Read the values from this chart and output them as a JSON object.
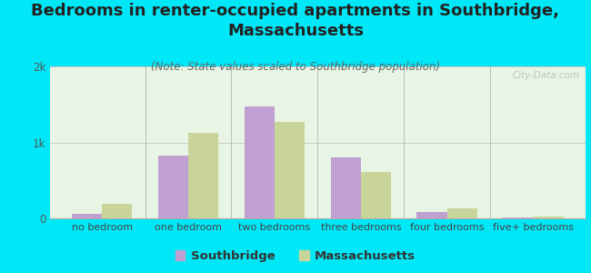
{
  "title": "Bedrooms in renter-occupied apartments in Southbridge,\nMassachusetts",
  "subtitle": "(Note: State values scaled to Southbridge population)",
  "categories": [
    "no bedroom",
    "one bedroom",
    "two bedrooms",
    "three bedrooms",
    "four bedrooms",
    "five+ bedrooms"
  ],
  "southbridge_values": [
    55,
    830,
    1480,
    800,
    90,
    18
  ],
  "massachusetts_values": [
    190,
    1130,
    1270,
    610,
    135,
    22
  ],
  "southbridge_color": "#c0a0d0",
  "massachusetts_color": "#c8d49a",
  "background_color": "#00e8f8",
  "plot_bg_color": "#e8f5e4",
  "ylim": [
    0,
    2000
  ],
  "yticks": [
    0,
    1000,
    2000
  ],
  "ytick_labels": [
    "0",
    "1k",
    "2k"
  ],
  "bar_width": 0.35,
  "title_fontsize": 13,
  "subtitle_fontsize": 8.5,
  "watermark": "City-Data.com",
  "legend_dot_color_sb": "#cc88cc",
  "legend_dot_color_ma": "#bbcc88"
}
